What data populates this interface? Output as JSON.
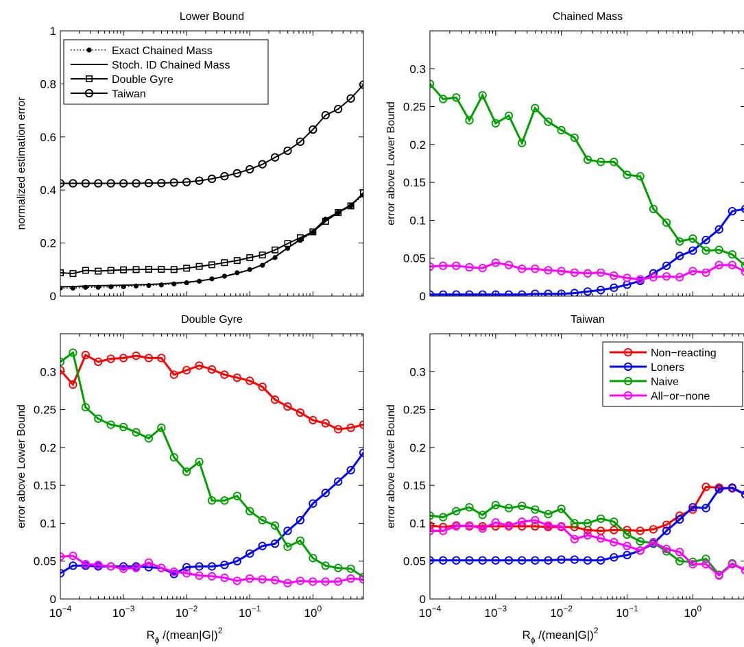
{
  "xlabel_main": "R",
  "xlabel_sub": "ϕ",
  "xlabel_rest": " /(mean|G|)",
  "xlabel_sup": "2",
  "xticks": [
    {
      "base": "10",
      "exp": "−4",
      "val": 0.0001
    },
    {
      "base": "10",
      "exp": "−3",
      "val": 0.001
    },
    {
      "base": "10",
      "exp": "−2",
      "val": 0.01
    },
    {
      "base": "10",
      "exp": "−1",
      "val": 0.1
    },
    {
      "base": "10",
      "exp": "0",
      "val": 1
    }
  ],
  "x": [
    0.0001,
    0.0001585,
    0.0002512,
    0.0003981,
    0.000631,
    0.001,
    0.001585,
    0.002512,
    0.003981,
    0.00631,
    0.01,
    0.01585,
    0.02512,
    0.03981,
    0.0631,
    0.1,
    0.1585,
    0.2512,
    0.3981,
    0.631,
    1.0,
    1.585,
    2.512,
    3.981,
    6.31
  ],
  "chart_data": [
    {
      "type": "line",
      "id": "lower-bound",
      "title": "Lower Bound",
      "ylabel": "normalized estimation error",
      "xscale": "log",
      "xlim": [
        0.0001,
        6.31
      ],
      "ylim": [
        0,
        1
      ],
      "yticks": [
        "0",
        "0.2",
        "0.4",
        "0.6",
        "0.8",
        "1"
      ],
      "ytick_values": [
        0,
        0.2,
        0.4,
        0.6,
        0.8,
        1.0
      ],
      "legend": "top-left",
      "series": [
        {
          "name": "Exact Chained Mass",
          "color": "#000000",
          "style": "dotted",
          "marker": "dot",
          "values": [
            0.03,
            0.03,
            0.033,
            0.033,
            0.035,
            0.035,
            0.038,
            0.04,
            0.042,
            0.046,
            0.05,
            0.056,
            0.065,
            0.075,
            0.088,
            0.1,
            0.116,
            0.145,
            0.18,
            0.21,
            0.24,
            0.29,
            0.315,
            0.34,
            0.38
          ]
        },
        {
          "name": "Stoch. ID Chained Mass",
          "color": "#000000",
          "style": "solid",
          "marker": "none",
          "values": [
            0.035,
            0.036,
            0.038,
            0.039,
            0.04,
            0.041,
            0.042,
            0.044,
            0.046,
            0.049,
            0.052,
            0.057,
            0.064,
            0.074,
            0.086,
            0.099,
            0.118,
            0.148,
            0.182,
            0.213,
            0.244,
            0.29,
            0.316,
            0.344,
            0.385
          ]
        },
        {
          "name": "Double Gyre",
          "color": "#000000",
          "style": "solid",
          "marker": "square",
          "values": [
            0.088,
            0.085,
            0.097,
            0.094,
            0.097,
            0.099,
            0.1,
            0.101,
            0.101,
            0.1,
            0.105,
            0.112,
            0.118,
            0.126,
            0.134,
            0.145,
            0.155,
            0.174,
            0.198,
            0.22,
            0.242,
            0.282,
            0.315,
            0.34,
            0.39
          ]
        },
        {
          "name": "Taiwan",
          "color": "#000000",
          "style": "solid",
          "marker": "circle",
          "values": [
            0.425,
            0.425,
            0.425,
            0.425,
            0.425,
            0.425,
            0.425,
            0.426,
            0.426,
            0.428,
            0.43,
            0.435,
            0.442,
            0.452,
            0.463,
            0.478,
            0.497,
            0.523,
            0.548,
            0.582,
            0.628,
            0.682,
            0.705,
            0.745,
            0.797
          ]
        }
      ]
    },
    {
      "type": "line",
      "id": "chained-mass",
      "title": "Chained Mass",
      "ylabel": "error above Lower Bound",
      "xscale": "log",
      "xlim": [
        0.0001,
        6.31
      ],
      "ylim": [
        0,
        0.35
      ],
      "yticks": [
        "0",
        "0.05",
        "0.1",
        "0.15",
        "0.2",
        "0.25",
        "0.3"
      ],
      "ytick_values": [
        0,
        0.05,
        0.1,
        0.15,
        0.2,
        0.25,
        0.3
      ],
      "series": [
        {
          "color": "#0000ff",
          "marker": "circle",
          "values": [
            0.002,
            0.002,
            0.002,
            0.002,
            0.002,
            0.002,
            0.002,
            0.002,
            0.003,
            0.003,
            0.003,
            0.004,
            0.006,
            0.008,
            0.011,
            0.015,
            0.02,
            0.03,
            0.04,
            0.053,
            0.06,
            0.074,
            0.088,
            0.112,
            0.115
          ]
        },
        {
          "color": "#00a000",
          "marker": "circle",
          "values": [
            0.28,
            0.26,
            0.262,
            0.232,
            0.265,
            0.228,
            0.238,
            0.202,
            0.248,
            0.23,
            0.219,
            0.209,
            0.18,
            0.177,
            0.177,
            0.16,
            0.158,
            0.115,
            0.097,
            0.072,
            0.076,
            0.06,
            0.061,
            0.055,
            0.04
          ]
        },
        {
          "color": "#ff00ff",
          "marker": "circle",
          "values": [
            0.039,
            0.04,
            0.04,
            0.038,
            0.037,
            0.044,
            0.041,
            0.036,
            0.036,
            0.034,
            0.033,
            0.031,
            0.03,
            0.031,
            0.027,
            0.024,
            0.022,
            0.025,
            0.026,
            0.025,
            0.033,
            0.031,
            0.041,
            0.041,
            0.032
          ]
        }
      ]
    },
    {
      "type": "line",
      "id": "double-gyre",
      "title": "Double Gyre",
      "ylabel": "error above Lower Bound",
      "xscale": "log",
      "xlim": [
        0.0001,
        6.31
      ],
      "ylim": [
        0,
        0.35
      ],
      "yticks": [
        "0",
        "0.05",
        "0.1",
        "0.15",
        "0.2",
        "0.25",
        "0.3"
      ],
      "ytick_values": [
        0,
        0.05,
        0.1,
        0.15,
        0.2,
        0.25,
        0.3
      ],
      "series": [
        {
          "color": "#ff0000",
          "marker": "circle",
          "values": [
            0.302,
            0.283,
            0.322,
            0.313,
            0.317,
            0.318,
            0.321,
            0.318,
            0.318,
            0.296,
            0.302,
            0.308,
            0.303,
            0.296,
            0.292,
            0.288,
            0.28,
            0.263,
            0.254,
            0.246,
            0.236,
            0.232,
            0.224,
            0.226,
            0.23
          ]
        },
        {
          "color": "#0000ff",
          "marker": "circle",
          "values": [
            0.034,
            0.044,
            0.044,
            0.043,
            0.043,
            0.043,
            0.043,
            0.042,
            0.041,
            0.033,
            0.042,
            0.043,
            0.043,
            0.045,
            0.05,
            0.06,
            0.07,
            0.073,
            0.09,
            0.104,
            0.126,
            0.14,
            0.155,
            0.17,
            0.193
          ]
        },
        {
          "color": "#00a000",
          "marker": "circle",
          "values": [
            0.313,
            0.325,
            0.253,
            0.238,
            0.23,
            0.227,
            0.22,
            0.212,
            0.226,
            0.187,
            0.168,
            0.181,
            0.13,
            0.13,
            0.136,
            0.116,
            0.104,
            0.097,
            0.069,
            0.077,
            0.054,
            0.044,
            0.041,
            0.04,
            0.029
          ]
        },
        {
          "color": "#ff00ff",
          "marker": "circle",
          "values": [
            0.056,
            0.057,
            0.046,
            0.045,
            0.043,
            0.04,
            0.041,
            0.048,
            0.041,
            0.036,
            0.034,
            0.031,
            0.03,
            0.028,
            0.024,
            0.027,
            0.026,
            0.025,
            0.021,
            0.024,
            0.023,
            0.023,
            0.023,
            0.027,
            0.026
          ]
        }
      ]
    },
    {
      "type": "line",
      "id": "taiwan",
      "title": "Taiwan",
      "ylabel": "error above Lower Bound",
      "xscale": "log",
      "xlim": [
        0.0001,
        6.31
      ],
      "ylim": [
        0,
        0.35
      ],
      "yticks": [
        "0",
        "0.05",
        "0.1",
        "0.15",
        "0.2",
        "0.25",
        "0.3"
      ],
      "ytick_values": [
        0,
        0.05,
        0.1,
        0.15,
        0.2,
        0.25,
        0.3
      ],
      "legend": "top-right",
      "series": [
        {
          "name": "Non−reacting",
          "color": "#ff0000",
          "marker": "circle",
          "values": [
            0.097,
            0.095,
            0.097,
            0.096,
            0.096,
            0.096,
            0.096,
            0.096,
            0.096,
            0.095,
            0.095,
            0.095,
            0.091,
            0.09,
            0.091,
            0.091,
            0.09,
            0.092,
            0.098,
            0.11,
            0.118,
            0.148,
            0.147,
            0.146,
            0.138
          ]
        },
        {
          "name": "Loners",
          "color": "#0000ff",
          "marker": "circle",
          "values": [
            0.051,
            0.051,
            0.051,
            0.051,
            0.051,
            0.051,
            0.051,
            0.051,
            0.051,
            0.051,
            0.052,
            0.052,
            0.051,
            0.051,
            0.055,
            0.058,
            0.064,
            0.073,
            0.09,
            0.105,
            0.121,
            0.12,
            0.145,
            0.147,
            0.138
          ]
        },
        {
          "name": "Naive",
          "color": "#00a000",
          "marker": "circle",
          "values": [
            0.11,
            0.108,
            0.116,
            0.121,
            0.111,
            0.124,
            0.12,
            0.123,
            0.118,
            0.112,
            0.119,
            0.1,
            0.1,
            0.106,
            0.102,
            0.085,
            0.076,
            0.074,
            0.063,
            0.05,
            0.049,
            0.053,
            0.032,
            0.047,
            0.038
          ]
        },
        {
          "name": "All−or−none",
          "color": "#ff00ff",
          "marker": "circle",
          "values": [
            0.09,
            0.09,
            0.096,
            0.097,
            0.093,
            0.101,
            0.097,
            0.102,
            0.104,
            0.097,
            0.096,
            0.079,
            0.084,
            0.08,
            0.075,
            0.07,
            0.064,
            0.075,
            0.066,
            0.062,
            0.046,
            0.046,
            0.031,
            0.046,
            0.038
          ]
        }
      ]
    }
  ]
}
